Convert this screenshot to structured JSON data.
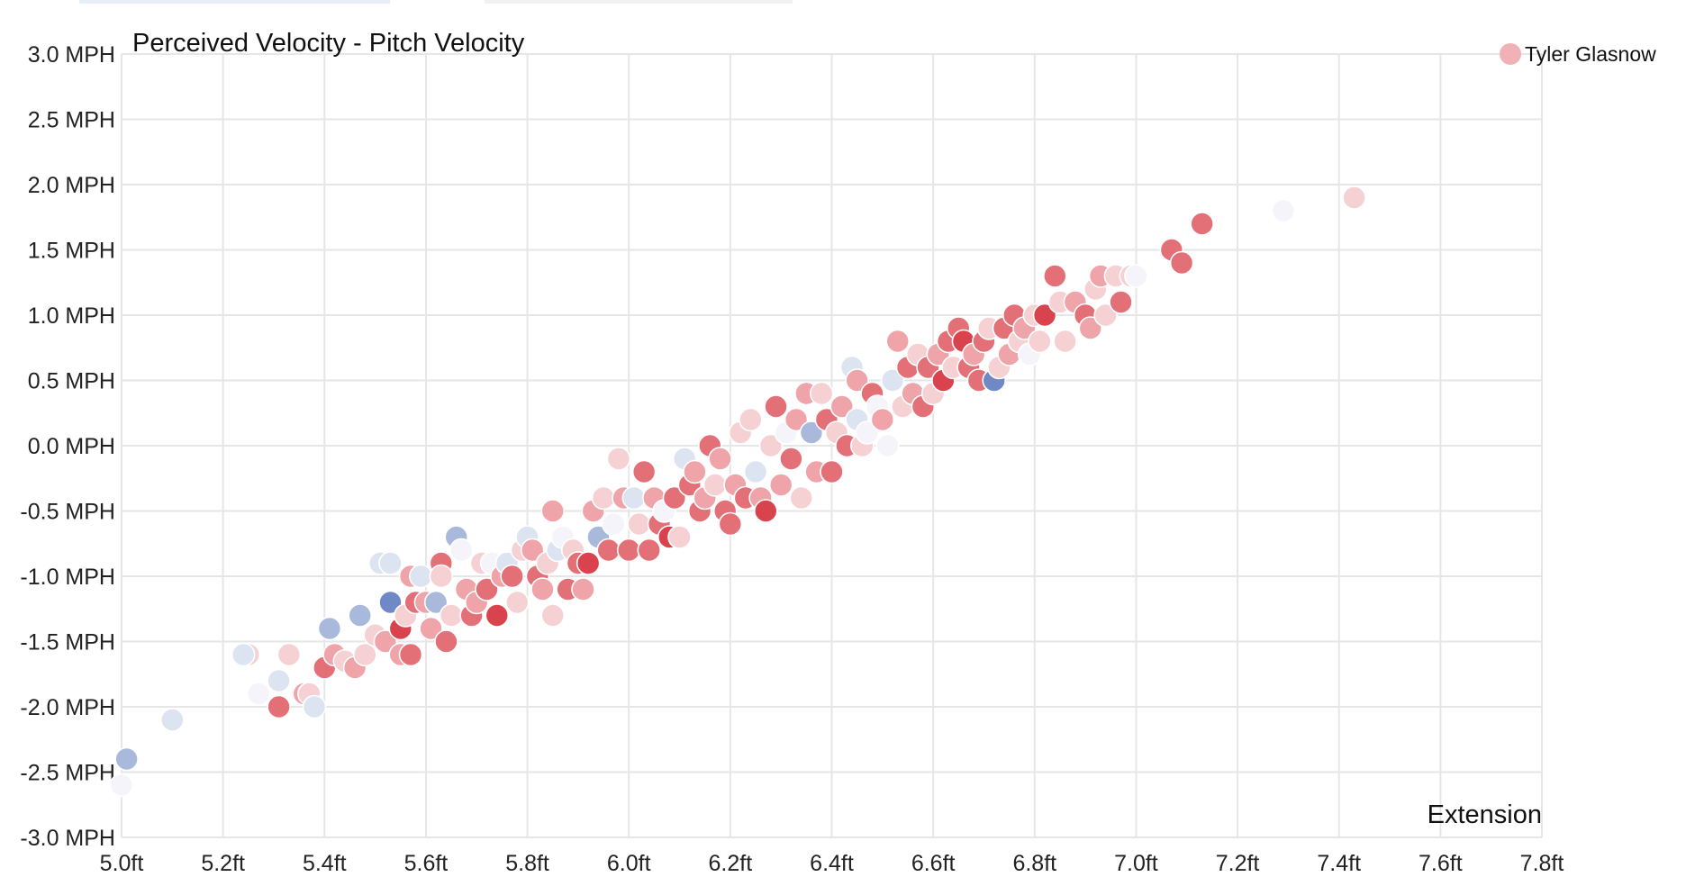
{
  "chart_data": {
    "type": "scatter",
    "title": "Perceived Velocity - Pitch Velocity",
    "xlabel": "Extension",
    "ylabel": "",
    "xlim": [
      5.0,
      7.8
    ],
    "ylim": [
      -3.0,
      3.0
    ],
    "x_ticks": [
      "5.0ft",
      "5.2ft",
      "5.4ft",
      "5.6ft",
      "5.8ft",
      "6.0ft",
      "6.2ft",
      "6.4ft",
      "6.6ft",
      "6.8ft",
      "7.0ft",
      "7.2ft",
      "7.4ft",
      "7.6ft",
      "7.8ft"
    ],
    "y_ticks": [
      "3.0 MPH",
      "2.5 MPH",
      "2.0 MPH",
      "1.5 MPH",
      "1.0 MPH",
      "0.5 MPH",
      "0.0 MPH",
      "-0.5 MPH",
      "-1.0 MPH",
      "-1.5 MPH",
      "-2.0 MPH",
      "-2.5 MPH",
      "-3.0 MPH"
    ],
    "grid": true,
    "legend_position": "top-right",
    "colors": {
      "strong_red": "#d9434d",
      "red": "#e36f77",
      "pink": "#eea4a9",
      "light_pink": "#f6d1d3",
      "pale": "#f4f4fa",
      "light_blue": "#dce3f1",
      "blue": "#a9b9dc",
      "strong_blue": "#6f89c6"
    },
    "series": [
      {
        "name": "Tyler Glasnow",
        "legend_color": "#f0b2b5",
        "points": [
          {
            "x": 5.0,
            "y": -2.6,
            "c": "pale"
          },
          {
            "x": 5.01,
            "y": -2.4,
            "c": "blue"
          },
          {
            "x": 5.1,
            "y": -2.1,
            "c": "light_blue"
          },
          {
            "x": 5.25,
            "y": -1.6,
            "c": "light_pink"
          },
          {
            "x": 5.24,
            "y": -1.6,
            "c": "light_blue"
          },
          {
            "x": 5.27,
            "y": -1.9,
            "c": "pale"
          },
          {
            "x": 5.31,
            "y": -2.0,
            "c": "red"
          },
          {
            "x": 5.31,
            "y": -1.8,
            "c": "light_blue"
          },
          {
            "x": 5.33,
            "y": -1.6,
            "c": "light_pink"
          },
          {
            "x": 5.36,
            "y": -1.9,
            "c": "pink"
          },
          {
            "x": 5.37,
            "y": -1.9,
            "c": "light_pink"
          },
          {
            "x": 5.38,
            "y": -2.0,
            "c": "light_blue"
          },
          {
            "x": 5.4,
            "y": -1.7,
            "c": "red"
          },
          {
            "x": 5.41,
            "y": -1.4,
            "c": "blue"
          },
          {
            "x": 5.42,
            "y": -1.6,
            "c": "pink"
          },
          {
            "x": 5.44,
            "y": -1.65,
            "c": "light_pink"
          },
          {
            "x": 5.46,
            "y": -1.7,
            "c": "pink"
          },
          {
            "x": 5.47,
            "y": -1.3,
            "c": "blue"
          },
          {
            "x": 5.48,
            "y": -1.6,
            "c": "light_pink"
          },
          {
            "x": 5.5,
            "y": -1.45,
            "c": "light_pink"
          },
          {
            "x": 5.51,
            "y": -0.9,
            "c": "light_blue"
          },
          {
            "x": 5.52,
            "y": -1.5,
            "c": "pink"
          },
          {
            "x": 5.53,
            "y": -0.9,
            "c": "light_blue"
          },
          {
            "x": 5.53,
            "y": -1.2,
            "c": "strong_blue"
          },
          {
            "x": 5.55,
            "y": -1.4,
            "c": "strong_red"
          },
          {
            "x": 5.55,
            "y": -1.6,
            "c": "pink"
          },
          {
            "x": 5.56,
            "y": -1.3,
            "c": "light_pink"
          },
          {
            "x": 5.57,
            "y": -1.0,
            "c": "pink"
          },
          {
            "x": 5.57,
            "y": -1.6,
            "c": "red"
          },
          {
            "x": 5.58,
            "y": -1.2,
            "c": "red"
          },
          {
            "x": 5.59,
            "y": -1.0,
            "c": "light_blue"
          },
          {
            "x": 5.6,
            "y": -1.2,
            "c": "pink"
          },
          {
            "x": 5.61,
            "y": -1.4,
            "c": "pink"
          },
          {
            "x": 5.62,
            "y": -1.2,
            "c": "blue"
          },
          {
            "x": 5.63,
            "y": -0.9,
            "c": "red"
          },
          {
            "x": 5.63,
            "y": -1.0,
            "c": "light_pink"
          },
          {
            "x": 5.64,
            "y": -1.5,
            "c": "red"
          },
          {
            "x": 5.65,
            "y": -1.3,
            "c": "light_pink"
          },
          {
            "x": 5.66,
            "y": -0.7,
            "c": "blue"
          },
          {
            "x": 5.67,
            "y": -0.8,
            "c": "pale"
          },
          {
            "x": 5.68,
            "y": -1.1,
            "c": "pink"
          },
          {
            "x": 5.69,
            "y": -1.3,
            "c": "red"
          },
          {
            "x": 5.7,
            "y": -1.2,
            "c": "pink"
          },
          {
            "x": 5.71,
            "y": -0.9,
            "c": "light_pink"
          },
          {
            "x": 5.72,
            "y": -1.1,
            "c": "red"
          },
          {
            "x": 5.73,
            "y": -0.9,
            "c": "pale"
          },
          {
            "x": 5.74,
            "y": -1.3,
            "c": "strong_red"
          },
          {
            "x": 5.75,
            "y": -1.0,
            "c": "pink"
          },
          {
            "x": 5.76,
            "y": -0.9,
            "c": "light_blue"
          },
          {
            "x": 5.77,
            "y": -1.0,
            "c": "red"
          },
          {
            "x": 5.78,
            "y": -1.2,
            "c": "light_pink"
          },
          {
            "x": 5.79,
            "y": -0.8,
            "c": "light_pink"
          },
          {
            "x": 5.8,
            "y": -0.7,
            "c": "light_blue"
          },
          {
            "x": 5.81,
            "y": -0.8,
            "c": "pink"
          },
          {
            "x": 5.82,
            "y": -1.0,
            "c": "red"
          },
          {
            "x": 5.83,
            "y": -1.1,
            "c": "pink"
          },
          {
            "x": 5.84,
            "y": -0.9,
            "c": "light_pink"
          },
          {
            "x": 5.85,
            "y": -1.3,
            "c": "light_pink"
          },
          {
            "x": 5.85,
            "y": -0.5,
            "c": "pink"
          },
          {
            "x": 5.86,
            "y": -0.8,
            "c": "light_blue"
          },
          {
            "x": 5.87,
            "y": -0.7,
            "c": "pale"
          },
          {
            "x": 5.88,
            "y": -1.1,
            "c": "red"
          },
          {
            "x": 5.89,
            "y": -0.8,
            "c": "light_pink"
          },
          {
            "x": 5.9,
            "y": -0.9,
            "c": "red"
          },
          {
            "x": 5.91,
            "y": -1.1,
            "c": "pink"
          },
          {
            "x": 5.92,
            "y": -0.9,
            "c": "strong_red"
          },
          {
            "x": 5.93,
            "y": -0.5,
            "c": "pink"
          },
          {
            "x": 5.94,
            "y": -0.7,
            "c": "blue"
          },
          {
            "x": 5.95,
            "y": -0.4,
            "c": "light_pink"
          },
          {
            "x": 5.96,
            "y": -0.8,
            "c": "red"
          },
          {
            "x": 5.97,
            "y": -0.6,
            "c": "pale"
          },
          {
            "x": 5.98,
            "y": -0.1,
            "c": "light_pink"
          },
          {
            "x": 5.99,
            "y": -0.4,
            "c": "pink"
          },
          {
            "x": 6.0,
            "y": -0.8,
            "c": "red"
          },
          {
            "x": 6.01,
            "y": -0.4,
            "c": "light_blue"
          },
          {
            "x": 6.02,
            "y": -0.6,
            "c": "light_pink"
          },
          {
            "x": 6.03,
            "y": -0.2,
            "c": "red"
          },
          {
            "x": 6.04,
            "y": -0.8,
            "c": "red"
          },
          {
            "x": 6.05,
            "y": -0.4,
            "c": "pink"
          },
          {
            "x": 6.06,
            "y": -0.6,
            "c": "red"
          },
          {
            "x": 6.07,
            "y": -0.5,
            "c": "pale"
          },
          {
            "x": 6.08,
            "y": -0.7,
            "c": "strong_red"
          },
          {
            "x": 6.09,
            "y": -0.4,
            "c": "red"
          },
          {
            "x": 6.1,
            "y": -0.7,
            "c": "light_pink"
          },
          {
            "x": 6.11,
            "y": -0.1,
            "c": "light_blue"
          },
          {
            "x": 6.12,
            "y": -0.3,
            "c": "red"
          },
          {
            "x": 6.13,
            "y": -0.2,
            "c": "pink"
          },
          {
            "x": 6.14,
            "y": -0.5,
            "c": "red"
          },
          {
            "x": 6.15,
            "y": -0.4,
            "c": "pink"
          },
          {
            "x": 6.16,
            "y": 0.0,
            "c": "red"
          },
          {
            "x": 6.17,
            "y": -0.3,
            "c": "light_pink"
          },
          {
            "x": 6.18,
            "y": -0.1,
            "c": "pink"
          },
          {
            "x": 6.19,
            "y": -0.5,
            "c": "red"
          },
          {
            "x": 6.2,
            "y": -0.6,
            "c": "red"
          },
          {
            "x": 6.21,
            "y": -0.3,
            "c": "pink"
          },
          {
            "x": 6.22,
            "y": 0.1,
            "c": "light_pink"
          },
          {
            "x": 6.23,
            "y": -0.4,
            "c": "red"
          },
          {
            "x": 6.24,
            "y": 0.2,
            "c": "light_pink"
          },
          {
            "x": 6.25,
            "y": -0.2,
            "c": "light_blue"
          },
          {
            "x": 6.26,
            "y": -0.4,
            "c": "pink"
          },
          {
            "x": 6.27,
            "y": -0.5,
            "c": "strong_red"
          },
          {
            "x": 6.28,
            "y": 0.0,
            "c": "light_pink"
          },
          {
            "x": 6.29,
            "y": 0.3,
            "c": "red"
          },
          {
            "x": 6.3,
            "y": -0.3,
            "c": "pink"
          },
          {
            "x": 6.31,
            "y": 0.1,
            "c": "pale"
          },
          {
            "x": 6.32,
            "y": -0.1,
            "c": "red"
          },
          {
            "x": 6.33,
            "y": 0.2,
            "c": "pink"
          },
          {
            "x": 6.34,
            "y": -0.4,
            "c": "light_pink"
          },
          {
            "x": 6.35,
            "y": 0.4,
            "c": "pink"
          },
          {
            "x": 6.36,
            "y": 0.1,
            "c": "blue"
          },
          {
            "x": 6.37,
            "y": -0.2,
            "c": "pink"
          },
          {
            "x": 6.38,
            "y": 0.4,
            "c": "light_pink"
          },
          {
            "x": 6.39,
            "y": 0.2,
            "c": "red"
          },
          {
            "x": 6.4,
            "y": -0.2,
            "c": "red"
          },
          {
            "x": 6.41,
            "y": 0.1,
            "c": "light_pink"
          },
          {
            "x": 6.42,
            "y": 0.3,
            "c": "pink"
          },
          {
            "x": 6.43,
            "y": 0.0,
            "c": "red"
          },
          {
            "x": 6.44,
            "y": 0.6,
            "c": "light_blue"
          },
          {
            "x": 6.45,
            "y": 0.5,
            "c": "pink"
          },
          {
            "x": 6.45,
            "y": 0.2,
            "c": "light_blue"
          },
          {
            "x": 6.46,
            "y": 0.0,
            "c": "light_pink"
          },
          {
            "x": 6.47,
            "y": 0.1,
            "c": "pale"
          },
          {
            "x": 6.48,
            "y": 0.4,
            "c": "red"
          },
          {
            "x": 6.49,
            "y": 0.3,
            "c": "pale"
          },
          {
            "x": 6.5,
            "y": 0.2,
            "c": "pink"
          },
          {
            "x": 6.51,
            "y": 0.0,
            "c": "pale"
          },
          {
            "x": 6.52,
            "y": 0.5,
            "c": "light_blue"
          },
          {
            "x": 6.53,
            "y": 0.8,
            "c": "pink"
          },
          {
            "x": 6.54,
            "y": 0.3,
            "c": "light_pink"
          },
          {
            "x": 6.55,
            "y": 0.6,
            "c": "red"
          },
          {
            "x": 6.56,
            "y": 0.4,
            "c": "pink"
          },
          {
            "x": 6.57,
            "y": 0.7,
            "c": "light_pink"
          },
          {
            "x": 6.58,
            "y": 0.3,
            "c": "red"
          },
          {
            "x": 6.59,
            "y": 0.6,
            "c": "red"
          },
          {
            "x": 6.6,
            "y": 0.4,
            "c": "light_pink"
          },
          {
            "x": 6.61,
            "y": 0.7,
            "c": "pink"
          },
          {
            "x": 6.62,
            "y": 0.5,
            "c": "strong_red"
          },
          {
            "x": 6.63,
            "y": 0.8,
            "c": "red"
          },
          {
            "x": 6.64,
            "y": 0.6,
            "c": "light_pink"
          },
          {
            "x": 6.65,
            "y": 0.9,
            "c": "red"
          },
          {
            "x": 6.66,
            "y": 0.8,
            "c": "strong_red"
          },
          {
            "x": 6.67,
            "y": 0.6,
            "c": "red"
          },
          {
            "x": 6.68,
            "y": 0.7,
            "c": "pink"
          },
          {
            "x": 6.69,
            "y": 0.5,
            "c": "red"
          },
          {
            "x": 6.7,
            "y": 0.8,
            "c": "red"
          },
          {
            "x": 6.71,
            "y": 0.9,
            "c": "light_pink"
          },
          {
            "x": 6.72,
            "y": 0.5,
            "c": "strong_blue"
          },
          {
            "x": 6.73,
            "y": 0.6,
            "c": "light_pink"
          },
          {
            "x": 6.74,
            "y": 0.9,
            "c": "red"
          },
          {
            "x": 6.75,
            "y": 0.7,
            "c": "pink"
          },
          {
            "x": 6.76,
            "y": 1.0,
            "c": "red"
          },
          {
            "x": 6.77,
            "y": 0.8,
            "c": "light_pink"
          },
          {
            "x": 6.78,
            "y": 0.9,
            "c": "pink"
          },
          {
            "x": 6.79,
            "y": 0.7,
            "c": "pale"
          },
          {
            "x": 6.8,
            "y": 1.0,
            "c": "light_pink"
          },
          {
            "x": 6.81,
            "y": 0.8,
            "c": "light_pink"
          },
          {
            "x": 6.82,
            "y": 1.0,
            "c": "strong_red"
          },
          {
            "x": 6.84,
            "y": 1.3,
            "c": "red"
          },
          {
            "x": 6.85,
            "y": 1.1,
            "c": "light_pink"
          },
          {
            "x": 6.86,
            "y": 0.8,
            "c": "light_pink"
          },
          {
            "x": 6.88,
            "y": 1.1,
            "c": "pink"
          },
          {
            "x": 6.9,
            "y": 1.0,
            "c": "red"
          },
          {
            "x": 6.91,
            "y": 0.9,
            "c": "pink"
          },
          {
            "x": 6.92,
            "y": 1.2,
            "c": "light_pink"
          },
          {
            "x": 6.93,
            "y": 1.3,
            "c": "pink"
          },
          {
            "x": 6.94,
            "y": 1.0,
            "c": "light_pink"
          },
          {
            "x": 6.96,
            "y": 1.3,
            "c": "light_pink"
          },
          {
            "x": 6.97,
            "y": 1.1,
            "c": "red"
          },
          {
            "x": 6.99,
            "y": 1.3,
            "c": "light_pink"
          },
          {
            "x": 7.0,
            "y": 1.3,
            "c": "pale"
          },
          {
            "x": 7.07,
            "y": 1.5,
            "c": "red"
          },
          {
            "x": 7.09,
            "y": 1.4,
            "c": "red"
          },
          {
            "x": 7.13,
            "y": 1.7,
            "c": "red"
          },
          {
            "x": 7.29,
            "y": 1.8,
            "c": "pale"
          },
          {
            "x": 7.43,
            "y": 1.9,
            "c": "light_pink"
          }
        ]
      }
    ]
  }
}
